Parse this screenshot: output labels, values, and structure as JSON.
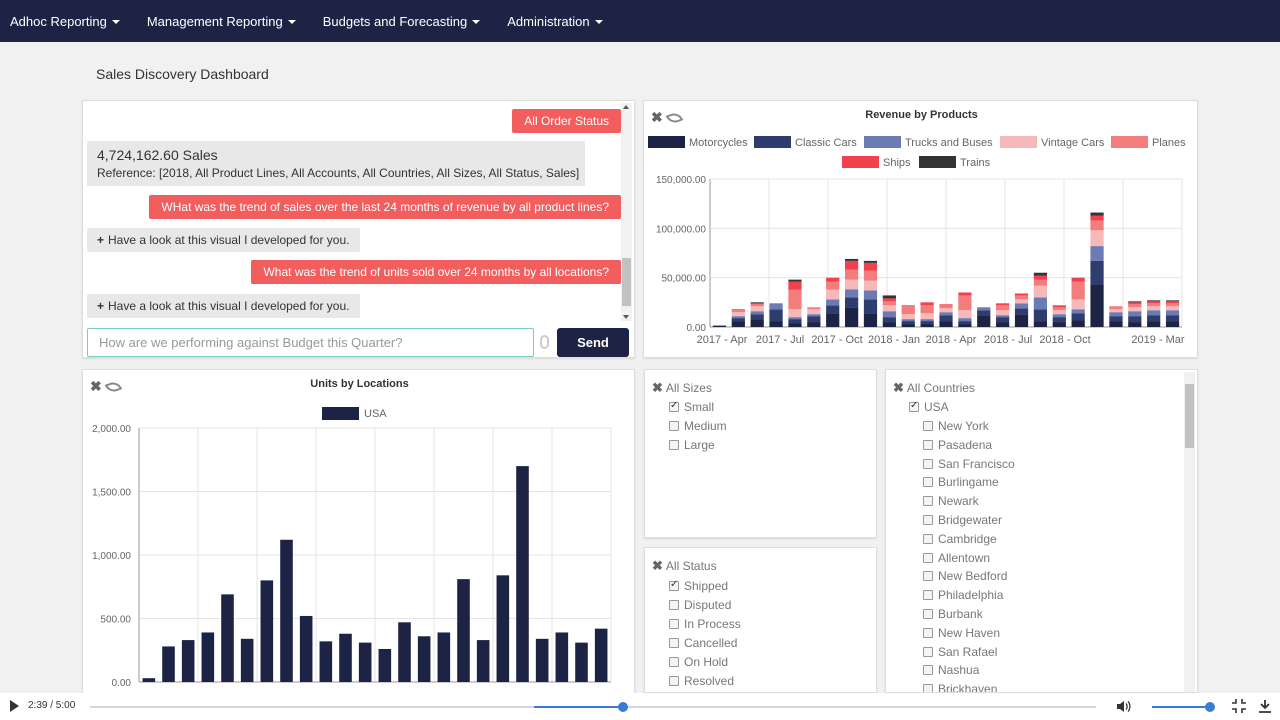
{
  "nav": {
    "items": [
      {
        "label": "Adhoc Reporting"
      },
      {
        "label": "Management Reporting"
      },
      {
        "label": "Budgets and Forecasting"
      },
      {
        "label": "Administration"
      }
    ]
  },
  "page": {
    "title": "Sales Discovery Dashboard"
  },
  "chat": {
    "order_status_msg": "All Order Status",
    "sales_value": "4,724,162.60 Sales",
    "sales_reference": "Reference: [2018, All Product Lines, All Accounts, All Countries, All Sizes, All Status, Sales]",
    "question1": "WHat was the trend of sales over the last 24 months of revenue by all product lines?",
    "reply1": "Have a look at this visual I developed for you.",
    "question2": "What was the trend of units sold over 24 months by all locations?",
    "reply2": "Have a look at this visual I developed for you.",
    "input_placeholder": "How are we performing against Budget this Quarter?",
    "send_label": "Send"
  },
  "revenue_chart": {
    "title": "Revenue by Products",
    "legend": [
      {
        "name": "Motorcycles",
        "color": "#1d2345"
      },
      {
        "name": "Classic Cars",
        "color": "#2f3d6e"
      },
      {
        "name": "Trucks and Buses",
        "color": "#6b7bb3"
      },
      {
        "name": "Vintage Cars",
        "color": "#f6b9b9"
      },
      {
        "name": "Planes",
        "color": "#f37c7c"
      },
      {
        "name": "Ships",
        "color": "#f0414f"
      },
      {
        "name": "Trains",
        "color": "#333336"
      }
    ],
    "y_ticks": [
      "150,000.00",
      "100,000.00",
      "50,000.00",
      "0.00"
    ],
    "x_ticks": [
      "2017 - Apr",
      "2017 - Jul",
      "2017 - Oct",
      "2018 - Jan",
      "2018 - Apr",
      "2018 - Jul",
      "2018 - Oct",
      "2019 - Mar"
    ]
  },
  "units_chart": {
    "title": "Units by Locations",
    "legend": [
      {
        "name": "USA",
        "color": "#1d2345"
      }
    ],
    "y_ticks": [
      "2,000.00",
      "1,500.00",
      "1,000.00",
      "500.00",
      "0.00"
    ]
  },
  "chart_data": [
    {
      "type": "bar",
      "title": "Revenue by Products",
      "stacked": true,
      "ylim": [
        0,
        150000
      ],
      "categories": [
        "2017-Mar",
        "2017-Apr",
        "2017-May",
        "2017-Jun",
        "2017-Jul",
        "2017-Aug",
        "2017-Sep",
        "2017-Oct",
        "2017-Nov",
        "2017-Dec",
        "2018-Jan",
        "2018-Feb",
        "2018-Mar",
        "2018-Apr",
        "2018-May",
        "2018-Jun",
        "2018-Jul",
        "2018-Aug",
        "2018-Sep",
        "2018-Oct",
        "2018-Nov",
        "2018-Dec",
        "2019-Jan",
        "2019-Feb",
        "2019-Mar"
      ],
      "series": [
        {
          "name": "Motorcycles",
          "values": [
            1000,
            6000,
            8000,
            6000,
            4000,
            5000,
            14000,
            20000,
            14000,
            5000,
            3000,
            3000,
            6000,
            3000,
            12000,
            5000,
            13000,
            6000,
            5000,
            7000,
            43000,
            6000,
            5000,
            6000,
            6000
          ]
        },
        {
          "name": "Classic Cars",
          "values": [
            500,
            3000,
            5000,
            12000,
            4000,
            6000,
            8000,
            10000,
            14000,
            5000,
            3000,
            3000,
            6000,
            3000,
            5000,
            5000,
            6000,
            12000,
            5000,
            7000,
            24000,
            5000,
            6000,
            6000,
            6000
          ]
        },
        {
          "name": "Trucks and Buses",
          "values": [
            0,
            2000,
            3000,
            6000,
            2000,
            2000,
            6000,
            8000,
            9000,
            6000,
            2000,
            2000,
            3000,
            3000,
            3000,
            2000,
            5000,
            12000,
            3000,
            4000,
            15000,
            4000,
            5000,
            5000,
            5000
          ]
        },
        {
          "name": "Vintage Cars",
          "values": [
            0,
            4000,
            5000,
            0,
            8000,
            5000,
            10000,
            10000,
            10000,
            6000,
            5000,
            6000,
            4000,
            8000,
            0,
            5000,
            4000,
            12000,
            4000,
            10000,
            16000,
            3000,
            4000,
            4000,
            4000
          ]
        },
        {
          "name": "Planes",
          "values": [
            0,
            2000,
            2000,
            0,
            20000,
            2000,
            8000,
            10000,
            10000,
            4000,
            8000,
            8000,
            3000,
            15000,
            0,
            5000,
            4000,
            6000,
            3000,
            18000,
            10000,
            3000,
            3000,
            3000,
            3000
          ]
        },
        {
          "name": "Ships",
          "values": [
            0,
            1000,
            1000,
            0,
            8000,
            0,
            4000,
            9000,
            8000,
            3000,
            1000,
            3000,
            1000,
            3000,
            0,
            2000,
            2000,
            4000,
            2000,
            4000,
            5000,
            0,
            2000,
            2000,
            2000
          ]
        },
        {
          "name": "Trains",
          "values": [
            0,
            0,
            1000,
            0,
            2000,
            0,
            0,
            2000,
            2000,
            3000,
            0,
            0,
            0,
            0,
            0,
            0,
            0,
            3000,
            0,
            0,
            3000,
            0,
            1000,
            1000,
            1000
          ]
        }
      ]
    },
    {
      "type": "bar",
      "title": "Units by Locations",
      "ylim": [
        0,
        2000
      ],
      "series": [
        {
          "name": "USA",
          "values": [
            30,
            280,
            330,
            390,
            690,
            340,
            800,
            1120,
            520,
            320,
            380,
            310,
            260,
            470,
            360,
            390,
            810,
            330,
            840,
            1700,
            340,
            390,
            310,
            420
          ]
        }
      ]
    }
  ],
  "filters": {
    "sizes": {
      "header": "All Sizes",
      "items": [
        {
          "label": "Small",
          "checked": true
        },
        {
          "label": "Medium",
          "checked": false
        },
        {
          "label": "Large",
          "checked": false
        }
      ]
    },
    "status": {
      "header": "All Status",
      "items": [
        {
          "label": "Shipped",
          "checked": true
        },
        {
          "label": "Disputed",
          "checked": false
        },
        {
          "label": "In Process",
          "checked": false
        },
        {
          "label": "Cancelled",
          "checked": false
        },
        {
          "label": "On Hold",
          "checked": false
        },
        {
          "label": "Resolved",
          "checked": false
        }
      ]
    },
    "countries": {
      "header": "All Countries",
      "country": {
        "label": "USA",
        "checked": true
      },
      "cities": [
        "New York",
        "Pasadena",
        "San Francisco",
        "Burlingame",
        "Newark",
        "Bridgewater",
        "Cambridge",
        "Allentown",
        "New Bedford",
        "Philadelphia",
        "Burbank",
        "New Haven",
        "San Rafael",
        "Nashua",
        "Brickhaven"
      ]
    }
  },
  "video": {
    "time": "2:39 / 5:00",
    "progress": 0.53
  }
}
